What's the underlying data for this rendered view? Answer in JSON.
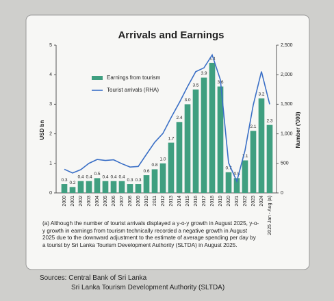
{
  "chart_data": {
    "type": "bar-line",
    "title": "Arrivals and Earnings",
    "y_label": "USD bn",
    "y2_label": "Number ('000)",
    "categories": [
      "2000",
      "2001",
      "2002",
      "2003",
      "2004",
      "2005",
      "2006",
      "2007",
      "2008",
      "2009",
      "2010",
      "2011",
      "2012",
      "2013",
      "2014",
      "2015",
      "2016",
      "2017",
      "2018",
      "2019",
      "2020",
      "2021",
      "2022",
      "2023",
      "2024",
      "2025 Jan - Aug (a)"
    ],
    "series": [
      {
        "name": "Earnings from tourism",
        "color": "#3f9f80",
        "kind": "bar",
        "values": [
          0.3,
          0.2,
          0.4,
          0.4,
          0.5,
          0.4,
          0.4,
          0.4,
          0.3,
          0.3,
          0.6,
          0.8,
          1.0,
          1.7,
          2.4,
          3.0,
          3.5,
          3.9,
          4.4,
          3.6,
          0.7,
          0.5,
          1.1,
          2.1,
          3.2,
          2.3
        ],
        "value_labels": [
          "0.3",
          "0.2",
          "0.4",
          "0.4",
          "0.5",
          "0.4",
          "0.4",
          "0.4",
          "0.3",
          "0.3",
          "0.6",
          "0.8",
          "1.0",
          "1.7",
          "2.4",
          "3.0",
          "3.5",
          "3.9",
          "4.4",
          "3.6",
          "0.7",
          "0.5",
          "1.1",
          "2.1",
          "3.2",
          "2.3"
        ]
      },
      {
        "name": "Tourist arrivals (RHA)",
        "color": "#3a6fc6",
        "kind": "line",
        "axis": "y2",
        "values": [
          400,
          337,
          393,
          501,
          566,
          549,
          560,
          494,
          438,
          448,
          654,
          856,
          1006,
          1275,
          1527,
          1798,
          2051,
          2116,
          2334,
          1914,
          508,
          195,
          720,
          1487,
          2054,
          1500
        ]
      }
    ],
    "ylim": [
      0,
      5
    ],
    "yticks": [
      0,
      1,
      2,
      3,
      4,
      5
    ],
    "y2lim": [
      0,
      2500
    ],
    "y2ticks": [
      0,
      500,
      {
        "value": 1000,
        "label": "1,000"
      },
      {
        "value": 1500,
        "label": "1,500"
      },
      {
        "value": 2000,
        "label": "2,000"
      },
      {
        "value": 2500,
        "label": "2,500"
      }
    ]
  },
  "note": "(a) Although the number of tourist arrivals displayed a y-o-y growth in August 2025, y-o-y growth in earnings from tourism technically recorded a negative growth in August 2025 due to the downward adjustment to the estimate of average spending per day by a tourist by Sri Lanka Tourism Development Authority (SLTDA) in August 2025.",
  "sources": [
    "Sources: Central Bank of Sri Lanka",
    "Sri Lanka Tourism Development Authority (SLTDA)"
  ]
}
